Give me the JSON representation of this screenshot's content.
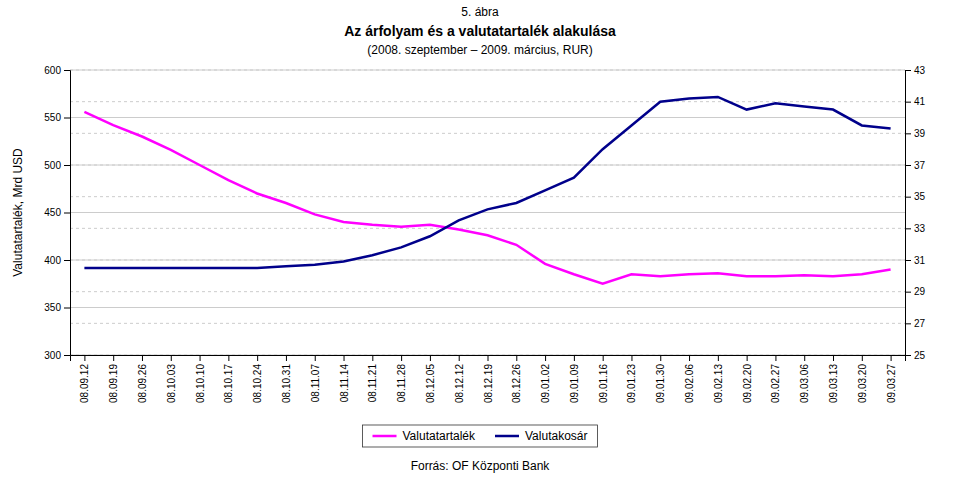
{
  "chart_data": {
    "type": "line",
    "title": "Az árfolyam és a valutatartalék alakulása",
    "subtitle": "(2008. szeptember – 2009. március, RUR)",
    "annotations": [
      "5. ábra",
      "Forrás: OF Központi Bank"
    ],
    "ylabel": "Valutatartalék, Mrd USD",
    "categories": [
      "08.09.12",
      "08.09.19",
      "08.09.26",
      "08.10.03",
      "08.10.10",
      "08.10.17",
      "08.10.24",
      "08.10.31",
      "08.11.07",
      "08.11.14",
      "08.11.21",
      "08.11.28",
      "08.12.05",
      "08.12.12",
      "08.12.19",
      "08.12.26",
      "09.01.02",
      "09.01.09",
      "09.01.16",
      "09.01.23",
      "09.01.30",
      "09.02.06",
      "09.02.13",
      "09.02.20",
      "09.02.27",
      "09.03.06",
      "09.03.13",
      "09.03.20",
      "09.03.27"
    ],
    "series": [
      {
        "name": "Valutatartalék",
        "color": "#FF00FF",
        "values": [
          556,
          542,
          530,
          516,
          500,
          484,
          470,
          460,
          448,
          440,
          437,
          435,
          437,
          432,
          426,
          416,
          396,
          385,
          375,
          385,
          383,
          385,
          386,
          383,
          383,
          384,
          383,
          385,
          390
        ]
      },
      {
        "name": "Valutakosár",
        "color": "#00008B",
        "axis": "y2",
        "values": [
          30.5,
          30.5,
          30.5,
          30.5,
          30.5,
          30.5,
          30.5,
          30.6,
          30.7,
          30.9,
          31.3,
          31.8,
          32.5,
          33.5,
          34.2,
          34.6,
          35.4,
          36.2,
          38.0,
          39.5,
          41.0,
          41.2,
          41.3,
          40.5,
          40.9,
          40.7,
          40.5,
          39.5,
          39.3
        ]
      }
    ],
    "ylim": [
      300,
      600
    ],
    "yticks": [
      300,
      350,
      400,
      450,
      500,
      550,
      600
    ],
    "y2lim": [
      25,
      43
    ],
    "y2ticks": [
      25,
      27,
      29,
      31,
      33,
      35,
      37,
      39,
      41,
      43
    ],
    "grid": true,
    "legend": "bottom"
  }
}
